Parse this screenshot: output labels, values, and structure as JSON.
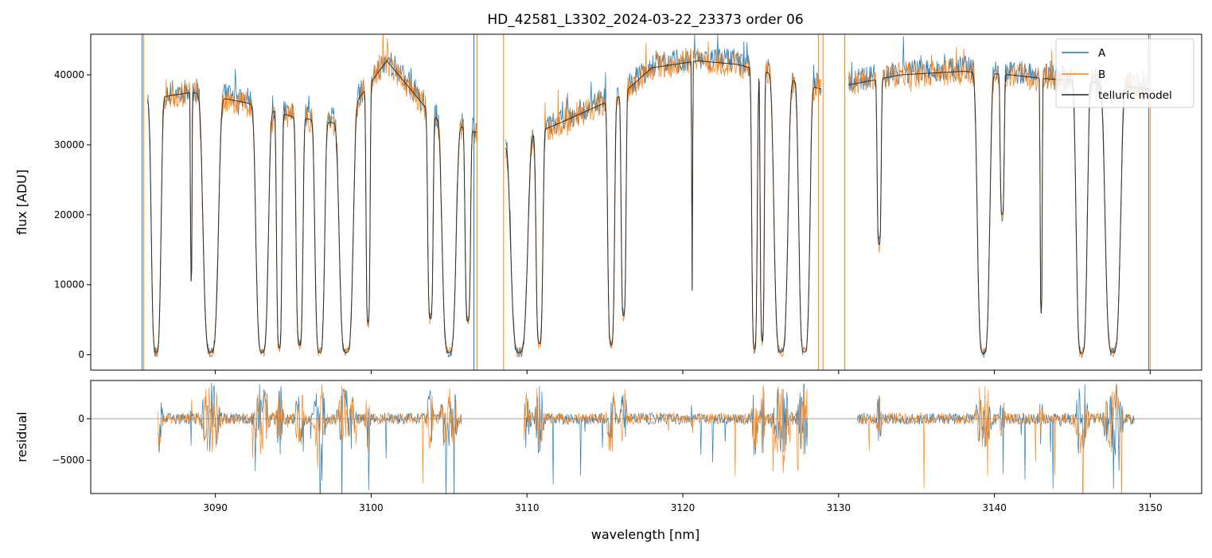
{
  "title": "HD_42581_L3302_2024-03-22_23373  order 06",
  "colors": {
    "A": "#1f77b4",
    "B": "#ff7f0e",
    "telluric": "#222222",
    "zero_line": "#888888",
    "frame": "#000000",
    "background": "#ffffff"
  },
  "chart_data": [
    {
      "type": "line",
      "panel": "flux",
      "xlabel": "",
      "ylabel": "flux [ADU]",
      "xlim": [
        3082.0,
        3153.3
      ],
      "ylim": [
        -2200,
        45800
      ],
      "ytick_values": [
        0,
        10000,
        20000,
        30000,
        40000
      ],
      "ytick_labels": [
        "0",
        "10000",
        "20000",
        "30000",
        "40000"
      ],
      "grid": false,
      "legend": {
        "placement": "top-right",
        "entries": [
          "A",
          "B",
          "telluric model"
        ]
      },
      "continuum_anchors": {
        "x": [
          3085.2,
          3087.0,
          3088.5,
          3092.0,
          3095.0,
          3098.0,
          3101.0,
          3104.0,
          3106.5,
          3108.6,
          3112.0,
          3116.0,
          3118.0,
          3121.0,
          3123.5,
          3126.0,
          3128.8,
          3130.5,
          3134.0,
          3138.0,
          3141.0,
          3143.0,
          3146.0,
          3149.8
        ],
        "y": [
          36000,
          37000,
          37500,
          36000,
          34000,
          33000,
          42000,
          34000,
          32000,
          30000,
          33000,
          37000,
          41000,
          42000,
          41500,
          40000,
          38000,
          38500,
          40000,
          40500,
          40000,
          39500,
          39000,
          38000
        ]
      },
      "gaps_x": [
        [
          3085.2,
          3085.6
        ],
        [
          3106.8,
          3108.6
        ],
        [
          3128.9,
          3130.6
        ],
        [
          3149.9,
          3153.3
        ]
      ],
      "absorption_bands": [
        {
          "center": 3086.2,
          "width": 0.35,
          "depth": 0.99
        },
        {
          "center": 3088.45,
          "width": 0.06,
          "depth": 0.72
        },
        {
          "center": 3089.7,
          "width": 0.55,
          "depth": 0.99
        },
        {
          "center": 3093.0,
          "width": 0.45,
          "depth": 0.99
        },
        {
          "center": 3094.1,
          "width": 0.2,
          "depth": 0.97
        },
        {
          "center": 3095.4,
          "width": 0.25,
          "depth": 0.96
        },
        {
          "center": 3096.7,
          "width": 0.35,
          "depth": 0.99
        },
        {
          "center": 3098.4,
          "width": 0.5,
          "depth": 0.99
        },
        {
          "center": 3099.8,
          "width": 0.15,
          "depth": 0.88
        },
        {
          "center": 3103.8,
          "width": 0.2,
          "depth": 0.85
        },
        {
          "center": 3105.0,
          "width": 0.5,
          "depth": 0.99
        },
        {
          "center": 3106.2,
          "width": 0.2,
          "depth": 0.85
        },
        {
          "center": 3109.5,
          "width": 0.6,
          "depth": 0.99
        },
        {
          "center": 3110.8,
          "width": 0.25,
          "depth": 0.95
        },
        {
          "center": 3115.4,
          "width": 0.25,
          "depth": 0.96
        },
        {
          "center": 3116.2,
          "width": 0.18,
          "depth": 0.85
        },
        {
          "center": 3120.6,
          "width": 0.04,
          "depth": 0.78
        },
        {
          "center": 3124.6,
          "width": 0.2,
          "depth": 0.98
        },
        {
          "center": 3125.1,
          "width": 0.15,
          "depth": 0.95
        },
        {
          "center": 3126.3,
          "width": 0.5,
          "depth": 0.99
        },
        {
          "center": 3127.8,
          "width": 0.4,
          "depth": 0.99
        },
        {
          "center": 3132.6,
          "width": 0.15,
          "depth": 0.6
        },
        {
          "center": 3139.3,
          "width": 0.45,
          "depth": 0.995
        },
        {
          "center": 3140.5,
          "width": 0.15,
          "depth": 0.5
        },
        {
          "center": 3143.0,
          "width": 0.08,
          "depth": 0.85
        },
        {
          "center": 3145.6,
          "width": 0.4,
          "depth": 0.995
        },
        {
          "center": 3147.6,
          "width": 0.55,
          "depth": 0.99
        }
      ],
      "vertical_spikes": [
        {
          "x": 3085.3,
          "y0": -2200,
          "y1": 45800,
          "series": "A"
        },
        {
          "x": 3085.4,
          "y0": -2200,
          "y1": 45800,
          "series": "B"
        },
        {
          "x": 3106.6,
          "y0": -2200,
          "y1": 45800,
          "series": "A"
        },
        {
          "x": 3106.8,
          "y0": -2200,
          "y1": 45800,
          "series": "B"
        },
        {
          "x": 3108.5,
          "y0": -2200,
          "y1": 45800,
          "series": "B"
        },
        {
          "x": 3128.7,
          "y0": -2200,
          "y1": 45800,
          "series": "B"
        },
        {
          "x": 3129.0,
          "y0": -2200,
          "y1": 45800,
          "series": "B"
        },
        {
          "x": 3130.4,
          "y0": -2200,
          "y1": 45800,
          "series": "B"
        },
        {
          "x": 3149.9,
          "y0": -2200,
          "y1": 45800,
          "series": "A"
        },
        {
          "x": 3150.0,
          "y0": -2200,
          "y1": 45800,
          "series": "B"
        }
      ],
      "series": [
        {
          "name": "A",
          "color": "#1f77b4",
          "noise": 1800,
          "seed": 11
        },
        {
          "name": "B",
          "color": "#ff7f0e",
          "noise": 1900,
          "seed": 23
        },
        {
          "name": "telluric model",
          "color": "#222222",
          "noise": 0,
          "seed": 0
        }
      ]
    },
    {
      "type": "line",
      "panel": "residual",
      "xlabel": "wavelength [nm]",
      "ylabel": "residual",
      "xlim": [
        3082.0,
        3153.3
      ],
      "ylim": [
        -9000,
        4600
      ],
      "xtick_values": [
        3090,
        3100,
        3110,
        3120,
        3130,
        3140,
        3150
      ],
      "xtick_labels": [
        "3090",
        "3100",
        "3110",
        "3120",
        "3130",
        "3140",
        "3150"
      ],
      "ytick_values": [
        -5000,
        0
      ],
      "ytick_labels": [
        "−5000",
        "0"
      ],
      "grid": false,
      "zero_line": 0,
      "segments_x": [
        [
          3086.3,
          3105.8
        ],
        [
          3109.8,
          3128.0
        ],
        [
          3131.2,
          3149.0
        ]
      ],
      "series": [
        {
          "name": "A",
          "color": "#1f77b4",
          "seed": 37
        },
        {
          "name": "B",
          "color": "#ff7f0e",
          "seed": 53
        }
      ]
    }
  ]
}
